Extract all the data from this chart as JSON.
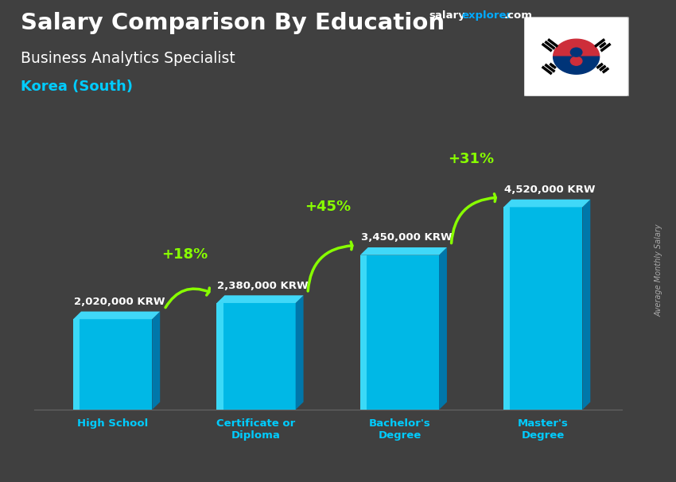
{
  "title_line1": "Salary Comparison By Education",
  "subtitle": "Business Analytics Specialist",
  "country": "Korea (South)",
  "watermark_salary": "salary",
  "watermark_explorer": "explorer",
  "watermark_com": ".com",
  "ylabel": "Average Monthly Salary",
  "categories": [
    "High School",
    "Certificate or\nDiploma",
    "Bachelor's\nDegree",
    "Master's\nDegree"
  ],
  "values": [
    2020000,
    2380000,
    3450000,
    4520000
  ],
  "labels": [
    "2,020,000 KRW",
    "2,380,000 KRW",
    "3,450,000 KRW",
    "4,520,000 KRW"
  ],
  "pct_labels": [
    "+18%",
    "+45%",
    "+31%"
  ],
  "bar_front_color": "#00b8e6",
  "bar_top_color": "#40d8f8",
  "bar_side_color": "#0077aa",
  "bar_highlight_color": "#55e8ff",
  "background_color": "#555555",
  "title_color": "#ffffff",
  "subtitle_color": "#ffffff",
  "country_color": "#00ccff",
  "label_color": "#ffffff",
  "pct_color": "#88ff00",
  "arrow_color": "#88ff00",
  "tick_color": "#00ccff",
  "salary_color": "#ffffff",
  "explorer_color": "#00aaff",
  "com_color": "#ffffff",
  "fig_width": 8.5,
  "fig_height": 6.06,
  "dpi": 100
}
